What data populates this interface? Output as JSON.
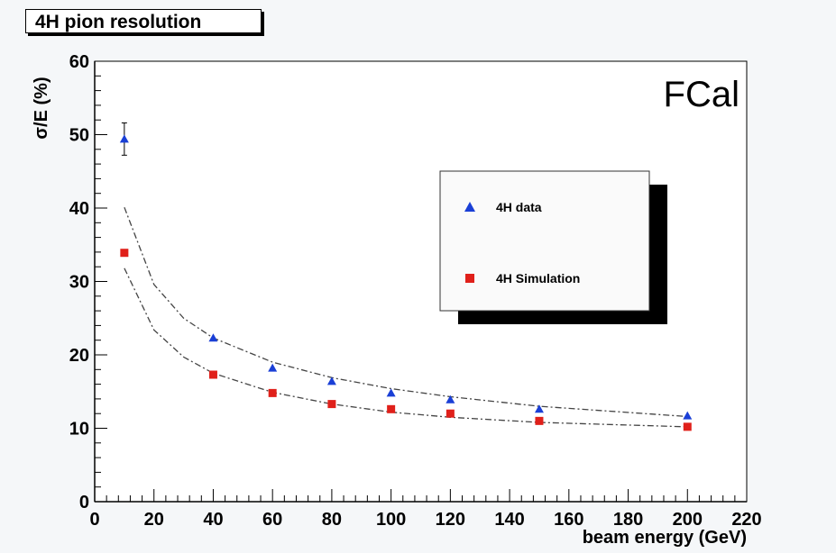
{
  "title": "4H pion resolution",
  "corner_label": "FCal",
  "colors": {
    "data": "#1a3fd6",
    "simulation": "#e0201a",
    "fit": "#444444",
    "plot_bg": "#ffffff",
    "page_bg": "#f5f7f9"
  },
  "chart_data": {
    "type": "scatter",
    "title": "4H pion resolution",
    "xlabel": "beam energy (GeV)",
    "ylabel": "σ/E (%)",
    "xlim": [
      0,
      220
    ],
    "ylim": [
      0,
      60
    ],
    "x_ticks": [
      "0",
      "20",
      "40",
      "60",
      "80",
      "100",
      "120",
      "140",
      "160",
      "180",
      "200",
      "220"
    ],
    "y_ticks": [
      "0",
      "10",
      "20",
      "30",
      "40",
      "50",
      "60"
    ],
    "grid": false,
    "legend_position": "top-right",
    "series": [
      {
        "name": "4H data",
        "marker": "triangle",
        "x": [
          10,
          40,
          60,
          80,
          100,
          120,
          150,
          200
        ],
        "y": [
          49.4,
          22.3,
          18.2,
          16.4,
          14.8,
          13.9,
          12.6,
          11.7
        ],
        "y_err": [
          2.2,
          0,
          0,
          0,
          0,
          0,
          0,
          0
        ]
      },
      {
        "name": "4H Simulation",
        "marker": "square",
        "x": [
          10,
          40,
          60,
          80,
          100,
          120,
          150,
          200
        ],
        "y": [
          33.9,
          17.3,
          14.8,
          13.3,
          12.6,
          12.0,
          11.0,
          10.2
        ]
      }
    ],
    "fits": [
      {
        "series": "4H data",
        "style": "dash-dot",
        "x": [
          10,
          20,
          30,
          40,
          60,
          80,
          100,
          120,
          150,
          200
        ],
        "y": [
          40.1,
          29.6,
          25.0,
          22.3,
          19.0,
          16.9,
          15.4,
          14.3,
          13.0,
          11.6
        ]
      },
      {
        "series": "4H Simulation",
        "style": "dash-dot",
        "x": [
          10,
          20,
          30,
          40,
          60,
          80,
          100,
          120,
          150,
          200
        ],
        "y": [
          31.8,
          23.4,
          19.7,
          17.5,
          14.9,
          13.3,
          12.2,
          11.5,
          10.8,
          10.2
        ]
      }
    ]
  }
}
